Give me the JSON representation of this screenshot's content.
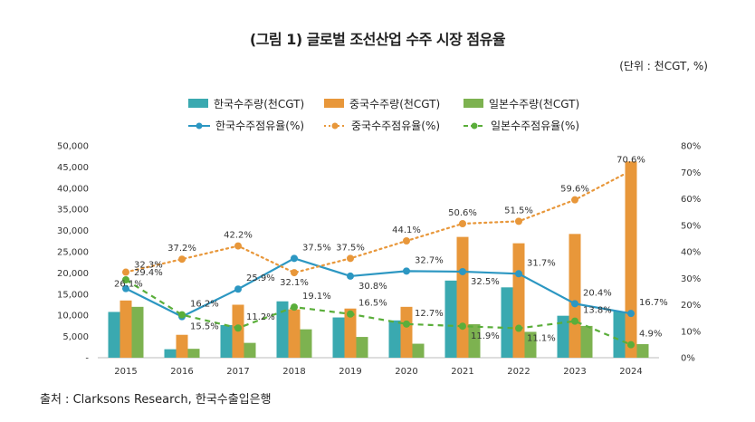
{
  "title": "(그림 1) 글로벌 조선산업 수주 시장 점유율",
  "unit": "(단위 : 천CGT, %)",
  "source": "출처 : Clarksons Research, 한국수출입은행",
  "colors": {
    "korea_bar": "#3AA9B0",
    "china_bar": "#E8973A",
    "japan_bar": "#7DB250",
    "korea_line": "#2C97C2",
    "china_line": "#E8973A",
    "japan_line": "#5AAE3A"
  },
  "chart_data": {
    "type": "bar",
    "categories": [
      "2015",
      "2016",
      "2017",
      "2018",
      "2019",
      "2020",
      "2021",
      "2022",
      "2023",
      "2024"
    ],
    "series": [
      {
        "name": "한국수주량(천CGT)",
        "type": "bar",
        "axis": "left",
        "values": [
          10800,
          2000,
          7700,
          13300,
          9500,
          8800,
          18200,
          16600,
          9900,
          10900
        ]
      },
      {
        "name": "중국수주량(천CGT)",
        "type": "bar",
        "axis": "left",
        "values": [
          13500,
          5400,
          12500,
          11400,
          11600,
          12000,
          28500,
          27000,
          29200,
          46300
        ]
      },
      {
        "name": "일본수주량(천CGT)",
        "type": "bar",
        "axis": "left",
        "values": [
          12000,
          2100,
          3500,
          6700,
          4900,
          3300,
          7900,
          6100,
          7500,
          3200
        ]
      },
      {
        "name": "한국수주점유율(%)",
        "type": "line",
        "axis": "right",
        "values": [
          26.1,
          15.5,
          25.9,
          37.5,
          30.8,
          32.7,
          32.5,
          31.7,
          20.4,
          16.7
        ]
      },
      {
        "name": "중국수주점유율(%)",
        "type": "line",
        "axis": "right",
        "values": [
          32.3,
          37.2,
          42.2,
          32.1,
          37.5,
          44.1,
          50.6,
          51.5,
          59.6,
          70.6
        ]
      },
      {
        "name": "일본수주점유율(%)",
        "type": "line",
        "axis": "right",
        "values": [
          29.4,
          16.2,
          11.2,
          19.1,
          16.5,
          12.7,
          11.9,
          11.1,
          13.8,
          4.9
        ]
      }
    ],
    "labels": {
      "korea": [
        "26.1%",
        "15.5%",
        "25.9%",
        "37.5%",
        "30.8%",
        "32.7%",
        "32.5%",
        "31.7%",
        "20.4%",
        "16.7%"
      ],
      "china": [
        "32.3%",
        "37.2%",
        "42.2%",
        "32.1%",
        "37.5%",
        "44.1%",
        "50.6%",
        "51.5%",
        "59.6%",
        "70.6%"
      ],
      "japan": [
        "29.4%",
        "16.2%",
        "11.2%",
        "19.1%",
        "16.5%",
        "12.7%",
        "11.9%",
        "11.1%",
        "13.8%",
        "4.9%"
      ]
    },
    "yticks_left": [
      "-",
      "5,000",
      "10,000",
      "15,000",
      "20,000",
      "25,000",
      "30,000",
      "35,000",
      "40,000",
      "45,000",
      "50,000"
    ],
    "yticks_right": [
      "0%",
      "10%",
      "20%",
      "30%",
      "40%",
      "50%",
      "60%",
      "70%",
      "80%"
    ],
    "ylim_left": [
      0,
      50000
    ],
    "ylim_right": [
      0,
      80
    ],
    "grid": false,
    "legend_position": "top"
  }
}
